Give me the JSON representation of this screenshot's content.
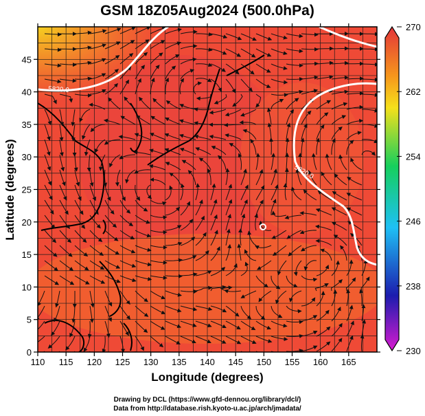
{
  "title": "GSM 18Z05Aug2024 (500.0hPa)",
  "x_axis": {
    "label": "Longitude (degrees)",
    "min": 110,
    "max": 170,
    "ticks": [
      110,
      115,
      120,
      125,
      130,
      135,
      140,
      145,
      150,
      155,
      160,
      165
    ]
  },
  "y_axis": {
    "label": "Latitude (degrees)",
    "min": 0,
    "max": 50,
    "ticks": [
      0,
      5,
      10,
      15,
      20,
      25,
      30,
      35,
      40,
      45
    ]
  },
  "colorbar": {
    "min": 230,
    "max": 270,
    "tick_values": [
      230,
      238,
      246,
      254,
      262,
      270
    ],
    "labels": [
      "230",
      "238",
      "246",
      "254",
      "262",
      "270"
    ],
    "colors": [
      "#d81bd0",
      "#1c1cae",
      "#1ec0f5",
      "#16cf5c",
      "#f5e01b",
      "#f6951c",
      "#e3353a"
    ]
  },
  "contour_label": "5820.0",
  "credits": {
    "line1": "Drawing by DCL (https://www.gfd-dennou.org/library/dcl/)",
    "line2": "Data from http://database.rish.kyoto-u.ac.jp/arch/jmadata/"
  }
}
